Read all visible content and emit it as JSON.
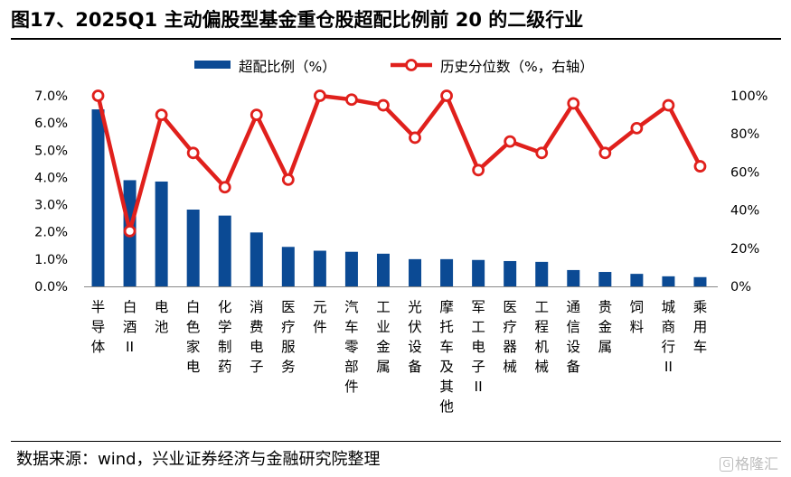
{
  "title": "图17、2025Q1 主动偏股型基金重仓股超配比例前 20 的二级行业",
  "source": "数据来源：wind，兴业证券经济与金融研究院整理",
  "watermark": "格隆汇",
  "watermark_badge": "G",
  "colors": {
    "bar": "#0b4a94",
    "line": "#e0201c",
    "marker_fill": "#ffffff"
  },
  "chart_data": {
    "type": "bar+line",
    "categories": [
      "半导体",
      "白酒II",
      "电池",
      "白色家电",
      "化学制药",
      "消费电子",
      "医疗服务",
      "元件",
      "汽车零部件",
      "工业金属",
      "光伏设备",
      "摩托车及其他",
      "军工电子II",
      "医疗器械",
      "工程机械",
      "通信设备",
      "贵金属",
      "饲料",
      "城商行II",
      "乘用车"
    ],
    "legend": [
      "超配比例（%）",
      "历史分位数（%，右轴）"
    ],
    "legend_position": "top",
    "series": [
      {
        "name": "超配比例（%）",
        "type": "bar",
        "axis": "left",
        "values": [
          6.5,
          3.9,
          3.85,
          2.82,
          2.6,
          1.98,
          1.45,
          1.31,
          1.27,
          1.2,
          1.0,
          1.0,
          0.97,
          0.93,
          0.9,
          0.6,
          0.53,
          0.46,
          0.37,
          0.34
        ]
      },
      {
        "name": "历史分位数（%，右轴）",
        "type": "line",
        "axis": "right",
        "values": [
          100,
          29,
          90,
          70,
          52,
          90,
          56,
          100,
          98,
          95,
          78,
          100,
          61,
          76,
          70,
          96,
          70,
          83,
          95,
          63
        ]
      }
    ],
    "y_left": {
      "min": 0,
      "max": 7,
      "ticks": [
        "0.0%",
        "1.0%",
        "2.0%",
        "3.0%",
        "4.0%",
        "5.0%",
        "6.0%",
        "7.0%"
      ]
    },
    "y_right": {
      "min": 0,
      "max": 100,
      "ticks": [
        "0%",
        "20%",
        "40%",
        "60%",
        "80%",
        "100%"
      ]
    },
    "grid": false
  }
}
